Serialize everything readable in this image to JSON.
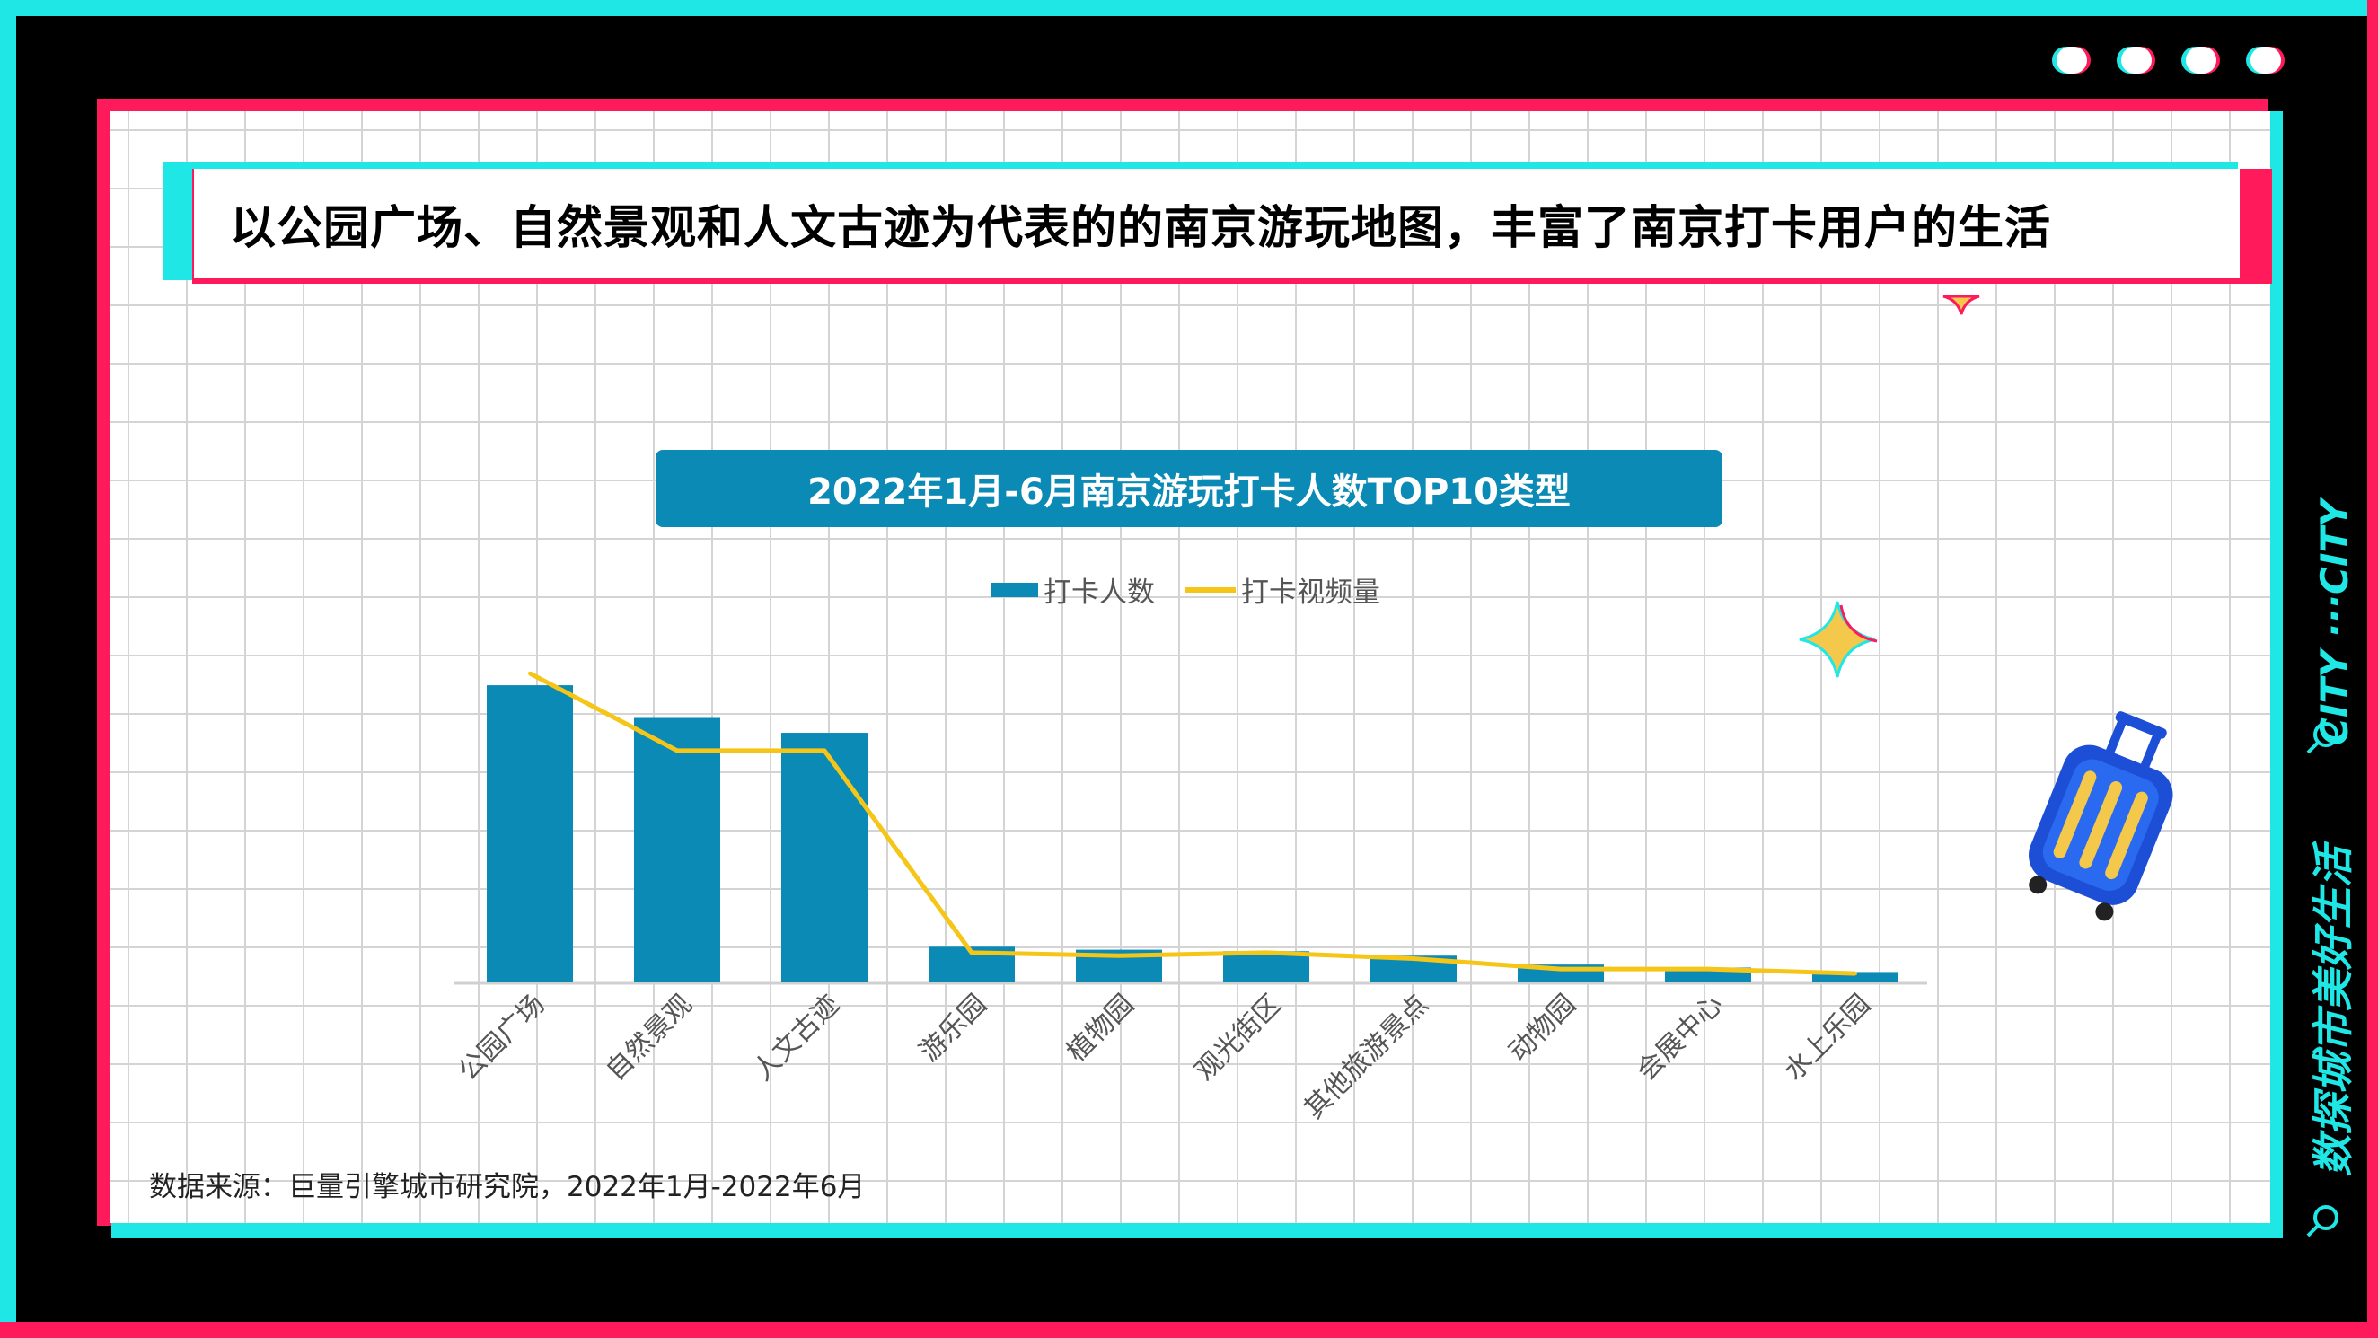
{
  "header": {
    "title": "以公园广场、自然景观和人文古迹为代表的的南京游玩地图，丰富了南京打卡用户的生活"
  },
  "side_banner": {
    "main": "数探城市美好生活",
    "sub": "CITY ···CITY"
  },
  "source": "数据来源：巨量引擎城市研究院，2022年1月-2022年6月",
  "icons": [
    "magnifier-icon",
    "sparkle-icon",
    "suitcase-icon"
  ],
  "colors": {
    "bar": "#0b8ab5",
    "line": "#f5c518",
    "accent_cyan": "#1fe7e6",
    "accent_pink": "#ff1a5c",
    "title_bg": "#0b8ab5"
  },
  "chart_data": {
    "type": "bar",
    "title": "2022年1月-6月南京游玩打卡人数TOP10类型",
    "categories": [
      "公园广场",
      "自然景观",
      "人文古迹",
      "游乐园",
      "植物园",
      "观光街区",
      "其他旅游景点",
      "动物园",
      "会展中心",
      "水上乐园"
    ],
    "series": [
      {
        "name": "打卡人数",
        "type": "bar",
        "values": [
          100,
          89,
          84,
          12,
          11,
          10.5,
          9,
          6,
          5,
          3.5
        ]
      },
      {
        "name": "打卡视频量",
        "type": "line",
        "values": [
          104,
          78,
          78,
          10,
          9,
          10,
          8,
          4.5,
          4.5,
          3
        ]
      }
    ],
    "ylim": [
      0,
      110
    ],
    "grid": false,
    "legend": "top-center"
  }
}
